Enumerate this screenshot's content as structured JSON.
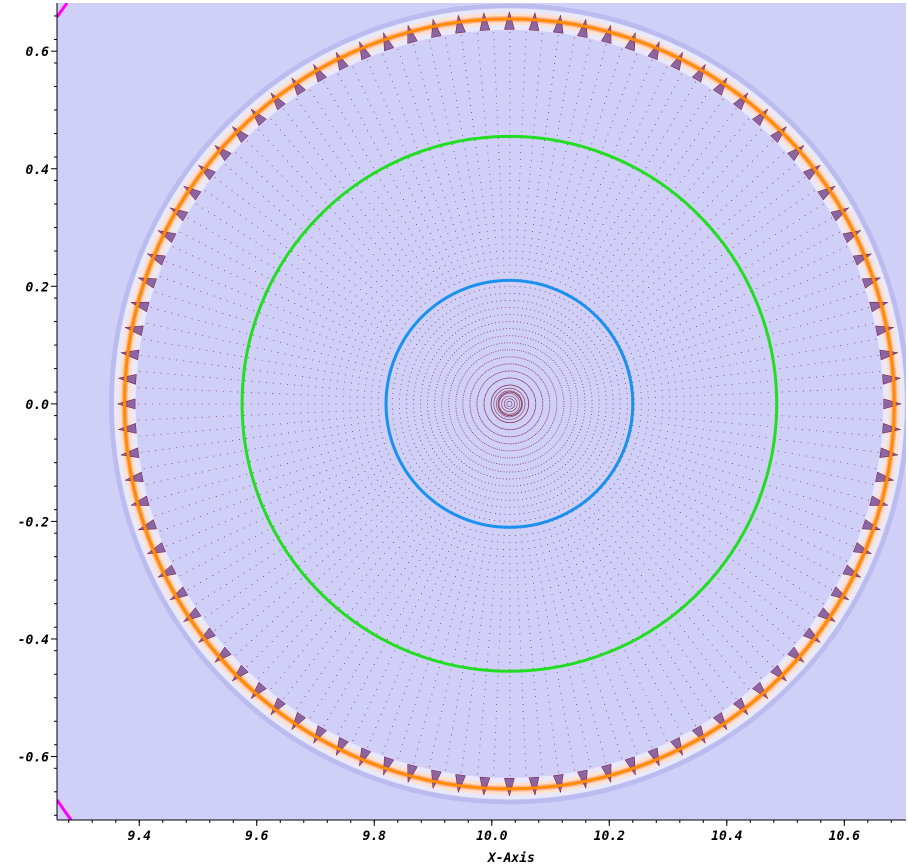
{
  "chart_data": {
    "type": "vector-field-contour",
    "xlabel": "X-Axis",
    "ylabel": "",
    "xlim": [
      9.26,
      10.705
    ],
    "ylim": [
      -0.708,
      0.682
    ],
    "x_ticks": [
      9.4,
      9.6,
      9.8,
      10.0,
      10.2,
      10.4,
      10.6
    ],
    "x_tick_labels": [
      "9.4",
      "9.6",
      "9.8",
      "10.0",
      "10.2",
      "10.4",
      "10.6"
    ],
    "y_ticks": [
      0.6,
      0.4,
      0.2,
      0.0,
      -0.2,
      -0.4,
      -0.6
    ],
    "y_tick_labels": [
      "0.6",
      "0.4",
      "0.2",
      "0.0",
      "-0.2",
      "-0.4",
      "-0.6"
    ],
    "center": [
      10.03,
      0.0
    ],
    "contours": [
      {
        "radius": 0.21,
        "color": "#1a90f0"
      },
      {
        "radius": 0.455,
        "color": "#22dd22"
      },
      {
        "radius": 0.655,
        "color": "#ff8c00"
      }
    ],
    "ring_highlight_radius": 0.655,
    "corner_contour_color": "#ff00ff",
    "background_color": "#cfcff7",
    "vector_color": "#7a1030",
    "grid": false
  }
}
